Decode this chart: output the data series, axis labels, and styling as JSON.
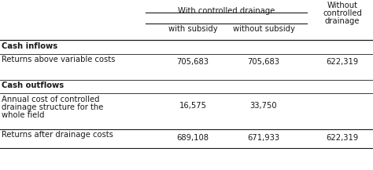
{
  "header_group1": "With controlled drainage",
  "header_group2_line1": "Without",
  "header_group2_line2": "controlled",
  "header_group2_line3": "drainage",
  "subheader_col1": "with subsidy",
  "subheader_col2": "without subsidy",
  "section1_title": "Cash inflows",
  "row1_label": "Returns above variable costs",
  "row1_col1": "705,683",
  "row1_col2": "705,683",
  "row1_col3": "622,319",
  "section2_title": "Cash outflows",
  "row2_label_line1": "Annual cost of controlled",
  "row2_label_line2": "drainage structure for the",
  "row2_label_line3": "whole field",
  "row2_col1": "16,575",
  "row2_col2": "33,750",
  "row3_label": "Returns after drainage costs",
  "row3_col1": "689,108",
  "row3_col2": "671,933",
  "row3_col3": "622,319",
  "bg_color": "#ffffff",
  "text_color": "#1a1a1a",
  "font_size": 7.2,
  "fig_width": 4.74,
  "fig_height": 2.17,
  "dpi": 100
}
